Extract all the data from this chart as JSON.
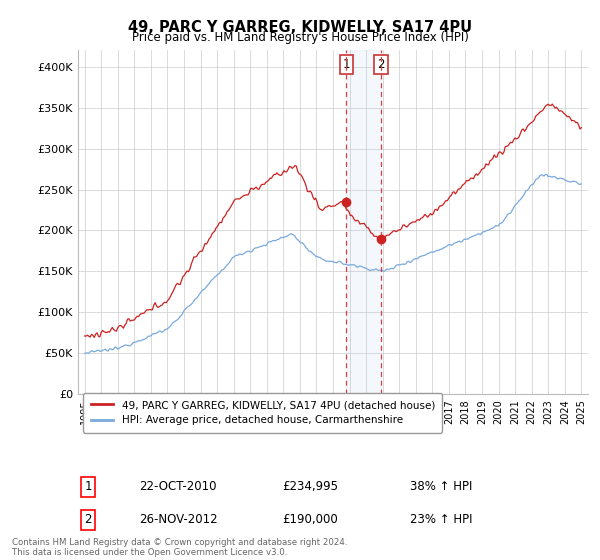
{
  "title": "49, PARC Y GARREG, KIDWELLY, SA17 4PU",
  "subtitle": "Price paid vs. HM Land Registry's House Price Index (HPI)",
  "legend_line1": "49, PARC Y GARREG, KIDWELLY, SA17 4PU (detached house)",
  "legend_line2": "HPI: Average price, detached house, Carmarthenshire",
  "annotation1_date": "22-OCT-2010",
  "annotation1_price": "£234,995",
  "annotation1_hpi": "38% ↑ HPI",
  "annotation2_date": "26-NOV-2012",
  "annotation2_price": "£190,000",
  "annotation2_hpi": "23% ↑ HPI",
  "red_color": "#cc2222",
  "blue_color": "#7aaadd",
  "background_color": "#ffffff",
  "grid_color": "#cccccc",
  "sale1_t": 2010.8,
  "sale1_price": 234995,
  "sale2_t": 2012.9,
  "sale2_price": 190000
}
